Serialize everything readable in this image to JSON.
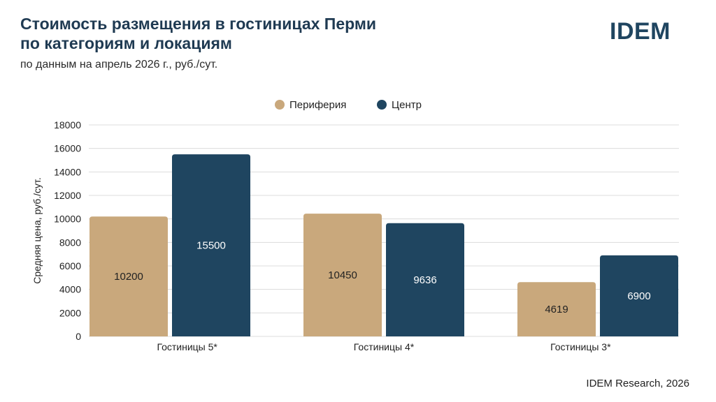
{
  "header": {
    "title_line1": "Стоимость размещения в гостиницах Перми",
    "title_line2": "по категориям и локациям",
    "subtitle": "по данным на апрель 2026 г., руб./сут."
  },
  "logo": {
    "text": "IDEM"
  },
  "footer": {
    "source": "IDEM Research, 2026"
  },
  "colors": {
    "periphery": "#c9a87c",
    "center": "#1f4560",
    "grid": "#dcdcdc"
  },
  "chart_data": {
    "type": "bar",
    "categories": [
      "Гостиницы 5*",
      "Гостиницы 4*",
      "Гостиницы 3*"
    ],
    "series": [
      {
        "name": "Периферия",
        "values": [
          10200,
          10450,
          4619
        ]
      },
      {
        "name": "Центр",
        "values": [
          15500,
          9636,
          6900
        ]
      }
    ],
    "ylabel": "Средняя цена, руб./сут.",
    "xlabel": "",
    "ylim": [
      0,
      18000
    ],
    "yticks": [
      0,
      2000,
      4000,
      6000,
      8000,
      10000,
      12000,
      14000,
      16000,
      18000
    ],
    "grid": true,
    "legend_position": "top-center",
    "data_labels": true
  }
}
